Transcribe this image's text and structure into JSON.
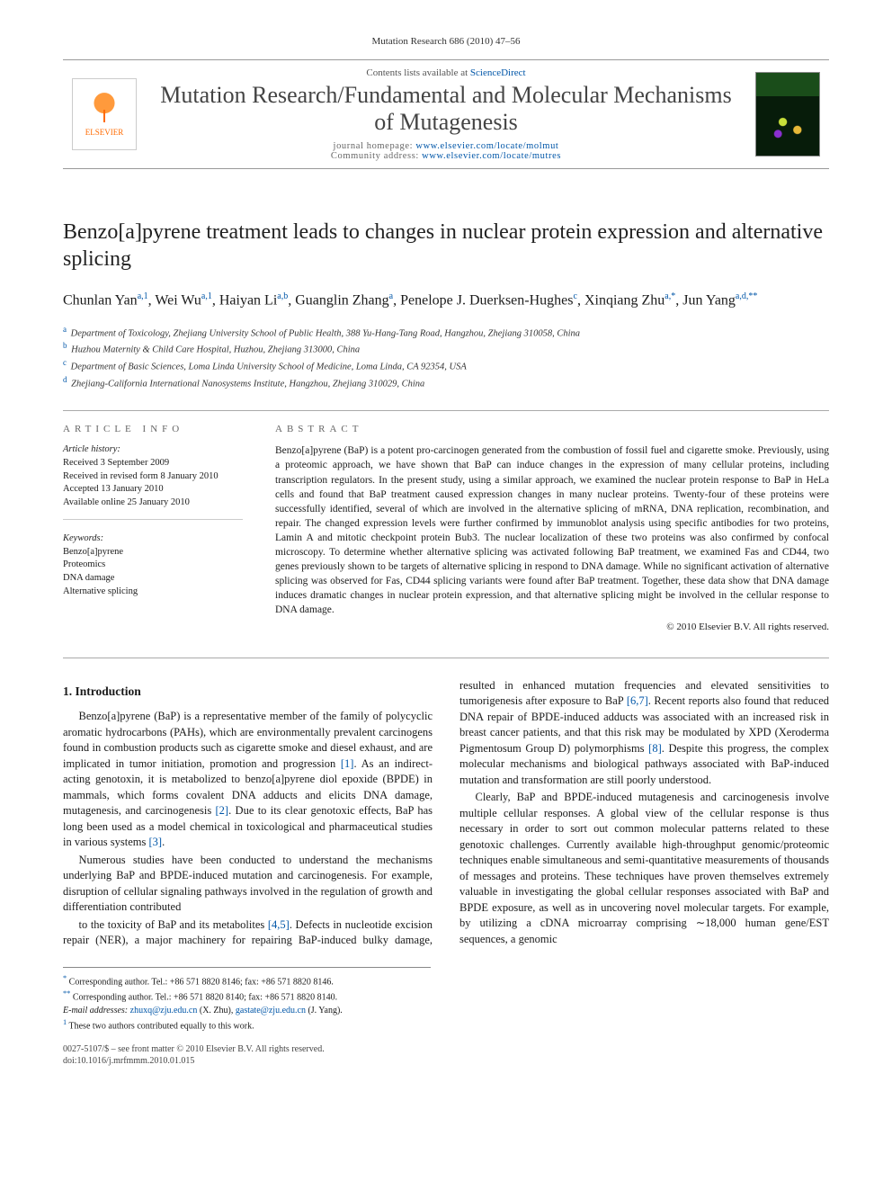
{
  "running_head": "Mutation Research 686 (2010) 47–56",
  "masthead": {
    "publisher": "ELSEVIER",
    "avail_prefix": "Contents lists available at ",
    "avail_link": "ScienceDirect",
    "journal": "Mutation Research/Fundamental and Molecular Mechanisms of Mutagenesis",
    "hp_label": "journal homepage: ",
    "hp_url": "www.elsevier.com/locate/molmut",
    "comm_label": "Community address: ",
    "comm_url": "www.elsevier.com/locate/mutres"
  },
  "title": "Benzo[a]pyrene treatment leads to changes in nuclear protein expression and alternative splicing",
  "authors_html": "Chunlan Yan<sup>a,1</sup>, Wei Wu<sup>a,1</sup>, Haiyan Li<sup>a,b</sup>, Guanglin Zhang<sup>a</sup>, Penelope J. Duerksen-Hughes<sup>c</sup>, Xinqiang Zhu<sup>a,*</sup>, Jun Yang<sup>a,d,**</sup>",
  "affiliations": [
    {
      "key": "a",
      "text": "Department of Toxicology, Zhejiang University School of Public Health, 388 Yu-Hang-Tang Road, Hangzhou, Zhejiang 310058, China"
    },
    {
      "key": "b",
      "text": "Huzhou Maternity & Child Care Hospital, Huzhou, Zhejiang 313000, China"
    },
    {
      "key": "c",
      "text": "Department of Basic Sciences, Loma Linda University School of Medicine, Loma Linda, CA 92354, USA"
    },
    {
      "key": "d",
      "text": "Zhejiang-California International Nanosystems Institute, Hangzhou, Zhejiang 310029, China"
    }
  ],
  "info": {
    "head": "ARTICLE INFO",
    "history_label": "Article history:",
    "history": [
      "Received 3 September 2009",
      "Received in revised form 8 January 2010",
      "Accepted 13 January 2010",
      "Available online 25 January 2010"
    ],
    "keywords_label": "Keywords:",
    "keywords": [
      "Benzo[a]pyrene",
      "Proteomics",
      "DNA damage",
      "Alternative splicing"
    ]
  },
  "abstract": {
    "head": "ABSTRACT",
    "text": "Benzo[a]pyrene (BaP) is a potent pro-carcinogen generated from the combustion of fossil fuel and cigarette smoke. Previously, using a proteomic approach, we have shown that BaP can induce changes in the expression of many cellular proteins, including transcription regulators. In the present study, using a similar approach, we examined the nuclear protein response to BaP in HeLa cells and found that BaP treatment caused expression changes in many nuclear proteins. Twenty-four of these proteins were successfully identified, several of which are involved in the alternative splicing of mRNA, DNA replication, recombination, and repair. The changed expression levels were further confirmed by immunoblot analysis using specific antibodies for two proteins, Lamin A and mitotic checkpoint protein Bub3. The nuclear localization of these two proteins was also confirmed by confocal microscopy. To determine whether alternative splicing was activated following BaP treatment, we examined Fas and CD44, two genes previously shown to be targets of alternative splicing in respond to DNA damage. While no significant activation of alternative splicing was observed for Fas, CD44 splicing variants were found after BaP treatment. Together, these data show that DNA damage induces dramatic changes in nuclear protein expression, and that alternative splicing might be involved in the cellular response to DNA damage.",
    "copyright": "© 2010 Elsevier B.V. All rights reserved."
  },
  "intro": {
    "heading": "1. Introduction",
    "p1": "Benzo[a]pyrene (BaP) is a representative member of the family of polycyclic aromatic hydrocarbons (PAHs), which are environmentally prevalent carcinogens found in combustion products such as cigarette smoke and diesel exhaust, and are implicated in tumor initiation, promotion and progression [1]. As an indirect-acting genotoxin, it is metabolized to benzo[a]pyrene diol epoxide (BPDE) in mammals, which forms covalent DNA adducts and elicits DNA damage, mutagenesis, and carcinogenesis [2]. Due to its clear genotoxic effects, BaP has long been used as a model chemical in toxicological and pharmaceutical studies in various systems [3].",
    "p2": "Numerous studies have been conducted to understand the mechanisms underlying BaP and BPDE-induced mutation and carcinogenesis. For example, disruption of cellular signaling pathways involved in the regulation of growth and differentiation contributed",
    "p3": "to the toxicity of BaP and its metabolites [4,5]. Defects in nucleotide excision repair (NER), a major machinery for repairing BaP-induced bulky damage, resulted in enhanced mutation frequencies and elevated sensitivities to tumorigenesis after exposure to BaP [6,7]. Recent reports also found that reduced DNA repair of BPDE-induced adducts was associated with an increased risk in breast cancer patients, and that this risk may be modulated by XPD (Xeroderma Pigmentosum Group D) polymorphisms [8]. Despite this progress, the complex molecular mechanisms and biological pathways associated with BaP-induced mutation and transformation are still poorly understood.",
    "p4": "Clearly, BaP and BPDE-induced mutagenesis and carcinogenesis involve multiple cellular responses. A global view of the cellular response is thus necessary in order to sort out common molecular patterns related to these genotoxic challenges. Currently available high-throughput genomic/proteomic techniques enable simultaneous and semi-quantitative measurements of thousands of messages and proteins. These techniques have proven themselves extremely valuable in investigating the global cellular responses associated with BaP and BPDE exposure, as well as in uncovering novel molecular targets. For example, by utilizing a cDNA microarray comprising ∼18,000 human gene/EST sequences, a genomic"
  },
  "footnotes": {
    "c1": "Corresponding author. Tel.: +86 571 8820 8146; fax: +86 571 8820 8146.",
    "c2": "Corresponding author. Tel.: +86 571 8820 8140; fax: +86 571 8820 8140.",
    "email_label": "E-mail addresses: ",
    "email1": "zhuxq@zju.edu.cn",
    "email1_who": " (X. Zhu), ",
    "email2": "gastate@zju.edu.cn",
    "email2_who": " (J. Yang).",
    "equal": "These two authors contributed equally to this work."
  },
  "doi": {
    "line1": "0027-5107/$ – see front matter © 2010 Elsevier B.V. All rights reserved.",
    "line2": "doi:10.1016/j.mrfmmm.2010.01.015"
  },
  "colors": {
    "link": "#0056a8",
    "rule": "#999999",
    "text": "#1a1a1a",
    "elsevier_orange": "#ff6a00"
  },
  "typography": {
    "title_fontsize": 24,
    "journal_fontsize": 26,
    "body_fontsize": 12.5,
    "abstract_fontsize": 11.5,
    "footnote_fontsize": 10
  }
}
